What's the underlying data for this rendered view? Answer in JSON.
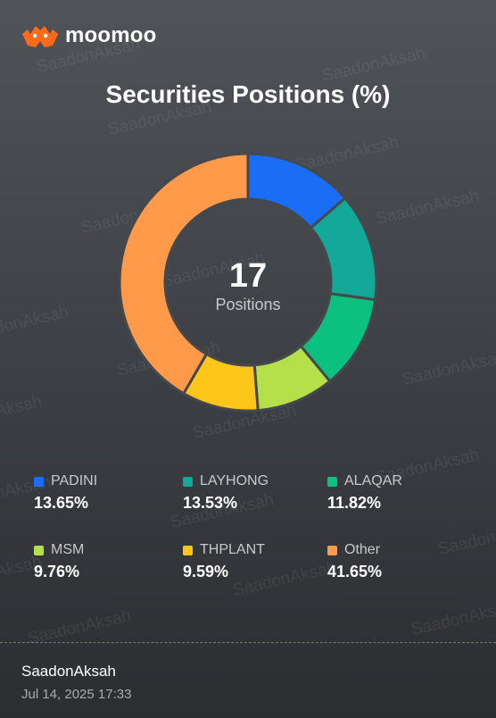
{
  "brand": {
    "name": "moomoo",
    "accent": "#ff6a1a"
  },
  "watermark": "SaadonAksah",
  "center": {
    "value": "17",
    "label": "Positions"
  },
  "chart_data": {
    "type": "donut",
    "title": "Securities Positions (%)",
    "unit": "%",
    "total_positions": 17,
    "slices": [
      {
        "label": "PADINI",
        "value": 13.65,
        "display": "13.65%",
        "color": "#1a6ef5"
      },
      {
        "label": "LAYHONG",
        "value": 13.53,
        "display": "13.53%",
        "color": "#13a898"
      },
      {
        "label": "ALAQAR",
        "value": 11.82,
        "display": "11.82%",
        "color": "#0cc07f"
      },
      {
        "label": "MSM",
        "value": 9.76,
        "display": "9.76%",
        "color": "#b5e04a"
      },
      {
        "label": "THPLANT",
        "value": 9.59,
        "display": "9.59%",
        "color": "#ffc61a"
      },
      {
        "label": "Other",
        "value": 41.65,
        "display": "41.65%",
        "color": "#ff9a4a"
      }
    ]
  },
  "footer": {
    "user": "SaadonAksah",
    "timestamp": "Jul 14, 2025 17:33"
  }
}
